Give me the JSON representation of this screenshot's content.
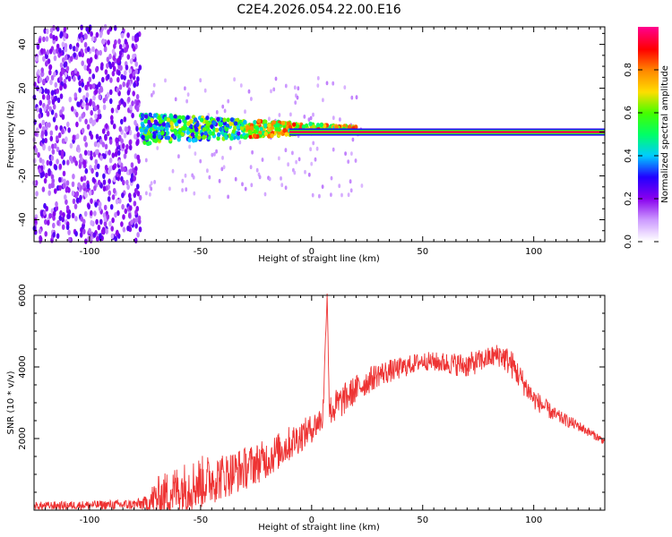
{
  "title": "C2E4.2026.054.22.00.E16",
  "chart_data": [
    {
      "type": "heatmap",
      "xlabel": "Height of straight line (km)",
      "ylabel": "Frequency (Hz)",
      "xlim": [
        -125,
        132
      ],
      "ylim": [
        -50,
        48
      ],
      "x_ticks": [
        -100,
        -50,
        0,
        50,
        100
      ],
      "x_tick_labels": [
        "-100",
        "-50",
        "0",
        "50",
        "100"
      ],
      "y_ticks": [
        -40,
        -20,
        0,
        20,
        40
      ],
      "y_tick_labels": [
        "-40",
        "-20",
        "0",
        "20",
        "40"
      ],
      "colorbar": {
        "label": "Normalized spectral amplitude",
        "range": [
          0,
          1
        ],
        "ticks": [
          0,
          0.2,
          0.4,
          0.6,
          0.8
        ],
        "tick_labels": [
          "0.0",
          "0.2",
          "0.4",
          "0.6",
          "0.8"
        ],
        "colors": [
          "#ffffff",
          "#cc99ff",
          "#8800ee",
          "#2200ff",
          "#00ccff",
          "#00ff66",
          "#44ff00",
          "#ffdd00",
          "#ff8800",
          "#ff0000",
          "#ff0088"
        ]
      },
      "features": [
        {
          "name": "broadband noise",
          "x_range": [
            -125,
            -77
          ],
          "freq_range": [
            -50,
            48
          ],
          "level": 0.15
        },
        {
          "name": "scattered signal",
          "x_range": [
            -77,
            20
          ],
          "freq_range": [
            -5,
            7
          ],
          "level": 0.5
        },
        {
          "name": "carrier line",
          "x_range": [
            -10,
            132
          ],
          "frequency": 0,
          "level": 0.95
        }
      ]
    },
    {
      "type": "line",
      "xlabel": "Height of straight line (km)",
      "ylabel": "SNR (10 * v/v)",
      "xlim": [
        -125,
        132
      ],
      "ylim": [
        0,
        6000
      ],
      "x_ticks": [
        -100,
        -50,
        0,
        50,
        100
      ],
      "x_tick_labels": [
        "-100",
        "-50",
        "0",
        "50",
        "100"
      ],
      "y_ticks": [
        2000,
        4000,
        6000
      ],
      "y_tick_labels": [
        "2000",
        "4000",
        "6000"
      ],
      "color": "#ee3333",
      "series": [
        {
          "name": "SNR",
          "x": [
            -125,
            -100,
            -80,
            -75,
            -70,
            -60,
            -50,
            -40,
            -30,
            -20,
            -10,
            0,
            5,
            7,
            8,
            10,
            20,
            30,
            40,
            50,
            60,
            70,
            80,
            85,
            90,
            100,
            110,
            120,
            132
          ],
          "y": [
            150,
            180,
            200,
            250,
            500,
            800,
            1000,
            1150,
            1350,
            1600,
            2000,
            2400,
            2700,
            6050,
            2900,
            3000,
            3500,
            3900,
            4050,
            4250,
            4200,
            4150,
            4350,
            4450,
            4200,
            3200,
            2700,
            2400,
            1950
          ],
          "noise": [
            120,
            120,
            150,
            200,
            600,
            700,
            750,
            650,
            600,
            550,
            500,
            400,
            400,
            0,
            400,
            500,
            400,
            350,
            300,
            250,
            300,
            350,
            300,
            350,
            400,
            300,
            200,
            150,
            100
          ]
        }
      ]
    }
  ]
}
